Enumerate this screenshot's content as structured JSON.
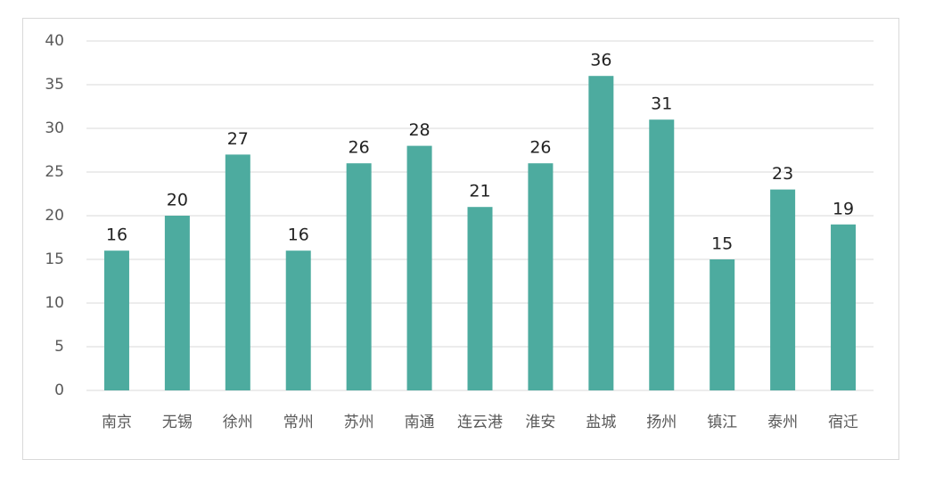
{
  "chart_data": {
    "type": "bar",
    "categories": [
      "南京",
      "无锡",
      "徐州",
      "常州",
      "苏州",
      "南通",
      "连云港",
      "淮安",
      "盐城",
      "扬州",
      "镇江",
      "泰州",
      "宿迁"
    ],
    "values": [
      16,
      20,
      27,
      16,
      26,
      28,
      21,
      26,
      36,
      31,
      15,
      23,
      19
    ],
    "color": "#4dab9f",
    "ylim": [
      0,
      40
    ],
    "yticks": [
      0,
      5,
      10,
      15,
      20,
      25,
      30,
      35,
      40
    ],
    "grid": true
  }
}
